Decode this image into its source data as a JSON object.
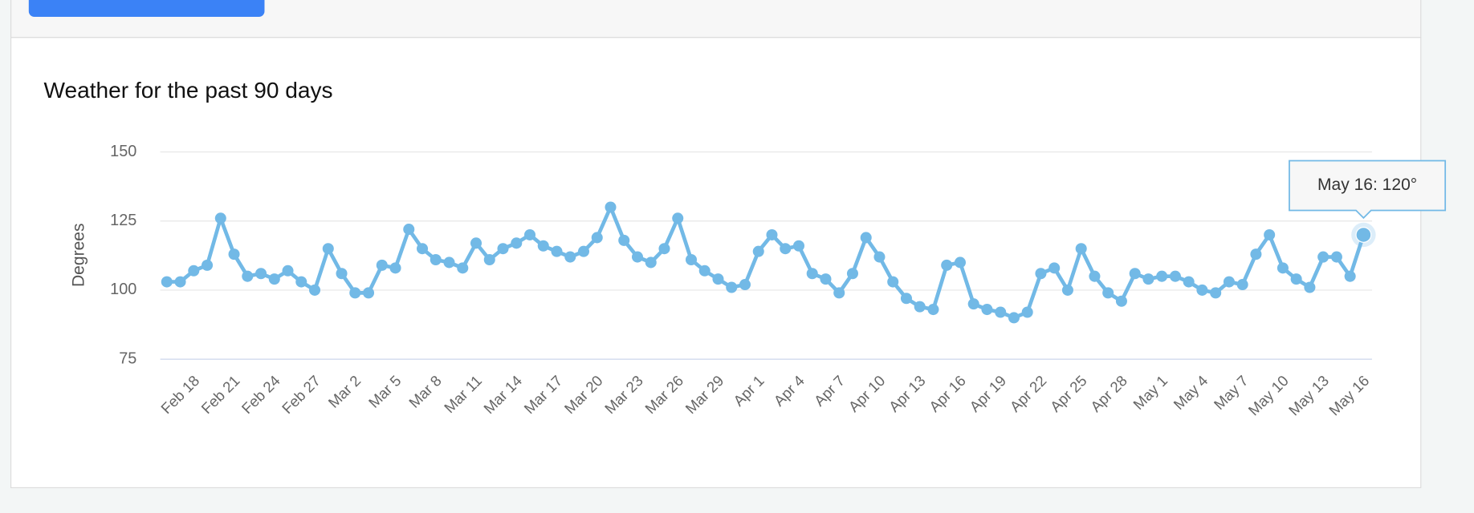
{
  "chart_data": {
    "type": "line",
    "title": "Weather for the past 90 days",
    "y_label": "Degrees",
    "categories": [
      null,
      null,
      "Feb 18",
      null,
      null,
      "Feb 21",
      null,
      null,
      "Feb 24",
      null,
      null,
      "Feb 27",
      null,
      null,
      "Mar 2",
      null,
      null,
      "Mar 5",
      null,
      null,
      "Mar 8",
      null,
      null,
      "Mar 11",
      null,
      null,
      "Mar 14",
      null,
      null,
      "Mar 17",
      null,
      null,
      "Mar 20",
      null,
      null,
      "Mar 23",
      null,
      null,
      "Mar 26",
      null,
      null,
      "Mar 29",
      null,
      null,
      "Apr 1",
      null,
      null,
      "Apr 4",
      null,
      null,
      "Apr 7",
      null,
      null,
      "Apr 10",
      null,
      null,
      "Apr 13",
      null,
      null,
      "Apr 16",
      null,
      null,
      "Apr 19",
      null,
      null,
      "Apr 22",
      null,
      null,
      "Apr 25",
      null,
      null,
      "Apr 28",
      null,
      null,
      "May 1",
      null,
      null,
      "May 4",
      null,
      null,
      "May 7",
      null,
      null,
      "May 10",
      null,
      null,
      "May 13",
      null,
      null,
      "May 16"
    ],
    "values": [
      103,
      103,
      107,
      109,
      126,
      113,
      105,
      106,
      104,
      107,
      103,
      100,
      115,
      106,
      99,
      99,
      109,
      108,
      122,
      115,
      111,
      110,
      108,
      117,
      111,
      115,
      117,
      120,
      116,
      114,
      112,
      114,
      119,
      130,
      118,
      112,
      110,
      115,
      126,
      111,
      107,
      104,
      101,
      102,
      114,
      120,
      115,
      116,
      106,
      104,
      99,
      106,
      119,
      112,
      103,
      97,
      94,
      93,
      109,
      110,
      95,
      93,
      92,
      90,
      92,
      106,
      108,
      100,
      115,
      105,
      99,
      96,
      106,
      104,
      105,
      105,
      103,
      100,
      99,
      103,
      102,
      113,
      120,
      108,
      104,
      101,
      112,
      112,
      105,
      120
    ],
    "color": "#72b9e6",
    "ylim": [
      75,
      150
    ],
    "yticks": [
      75,
      100,
      125,
      150
    ],
    "grid": true,
    "tooltip": "May 16: 120°"
  }
}
